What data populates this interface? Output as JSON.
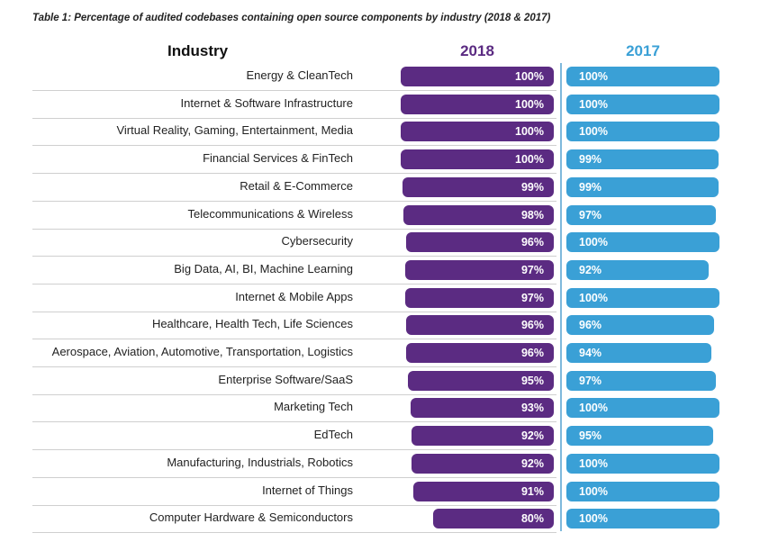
{
  "title": "Table 1: Percentage of audited codebases containing open source components by industry (2018 & 2017)",
  "headers": {
    "industry": "Industry",
    "y2018": "2018",
    "y2017": "2017"
  },
  "colors": {
    "y2018": "#5b2b82",
    "y2017": "#3aa0d6",
    "header2018": "#5b2b82",
    "header2017": "#3aa0d6"
  },
  "chart_data": {
    "type": "bar",
    "title": "Table 1: Percentage of audited codebases containing open source components by industry (2018 & 2017)",
    "categories": [
      "Energy & CleanTech",
      "Internet & Software Infrastructure",
      "Virtual Reality, Gaming, Entertainment, Media",
      "Financial Services & FinTech",
      "Retail & E-Commerce",
      "Telecommunications & Wireless",
      "Cybersecurity",
      "Big Data, AI, BI, Machine Learning",
      "Internet & Mobile Apps",
      "Healthcare, Health Tech, Life Sciences",
      "Aerospace, Aviation, Automotive, Transportation, Logistics",
      "Enterprise Software/SaaS",
      "Marketing Tech",
      "EdTech",
      "Manufacturing, Industrials, Robotics",
      "Internet of Things",
      "Computer Hardware & Semiconductors"
    ],
    "series": [
      {
        "name": "2018",
        "values": [
          100,
          100,
          100,
          100,
          99,
          98,
          96,
          97,
          97,
          96,
          96,
          95,
          93,
          92,
          92,
          91,
          80
        ],
        "labels": [
          "100%",
          "100%",
          "100%",
          "100%",
          "99%",
          "98%",
          "96%",
          "97%",
          "97%",
          "96%",
          "96%",
          "95%",
          "93%",
          "92%",
          "92%",
          "91%",
          "80%"
        ]
      },
      {
        "name": "2017",
        "values": [
          100,
          100,
          100,
          99,
          99,
          97,
          100,
          92,
          100,
          96,
          94,
          97,
          100,
          95,
          100,
          100,
          100
        ],
        "labels": [
          "100%",
          "100%",
          "100%",
          "99%",
          "99%",
          "97%",
          "100%",
          "92%",
          "100%",
          "96%",
          "94%",
          "97%",
          "100%",
          "95%",
          "100%",
          "100%",
          "100%"
        ]
      }
    ],
    "xlabel": "",
    "ylabel": "Industry",
    "xlim": [
      0,
      100
    ],
    "grid": false,
    "legend": "none"
  }
}
